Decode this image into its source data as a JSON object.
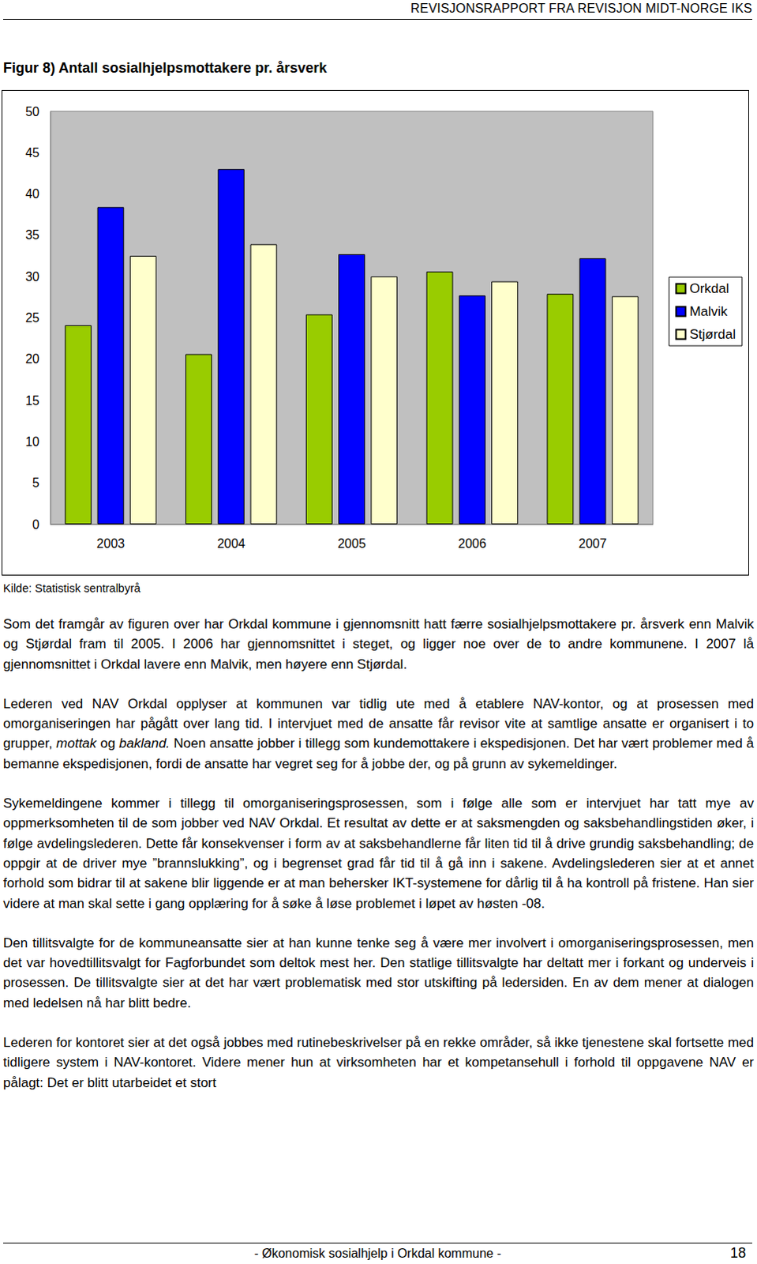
{
  "header": "REVISJONSRAPPORT FRA REVISJON MIDT-NORGE IKS",
  "chart_data": {
    "type": "bar",
    "title": "Figur 8) Antall sosialhjelpsmottakere pr. årsverk",
    "categories": [
      "2003",
      "2004",
      "2005",
      "2006",
      "2007"
    ],
    "series": [
      {
        "name": "Orkdal",
        "color": "#99cc00",
        "values": [
          24.1,
          20.6,
          25.4,
          30.6,
          27.9
        ]
      },
      {
        "name": "Malvik",
        "color": "#0000ff",
        "values": [
          38.4,
          43.0,
          32.7,
          27.7,
          32.2
        ]
      },
      {
        "name": "Stjørdal",
        "color": "#ffffcc",
        "values": [
          32.5,
          33.9,
          30.0,
          29.4,
          27.6
        ]
      }
    ],
    "ylim": [
      0,
      50
    ],
    "yticks": [
      0,
      5,
      10,
      15,
      20,
      25,
      30,
      35,
      40,
      45,
      50
    ],
    "grid": false,
    "legend": "right",
    "data_labels": false
  },
  "source": "Kilde: Statistisk sentralbyrå",
  "paragraphs": [
    "Som det framgår av figuren over har Orkdal kommune i gjennomsnitt hatt færre sosialhjelpsmottakere pr. årsverk enn Malvik og Stjørdal fram til 2005. I 2006 har gjennomsnittet i steget, og ligger noe over de to andre kommunene. I 2007 lå gjennomsnittet i Orkdal lavere enn Malvik, men høyere enn Stjørdal.",
    [
      {
        "text": "Lederen ved NAV Orkdal opplyser at kommunen var tidlig ute med å etablere NAV-kontor, og at prosessen med omorganiseringen har pågått over lang tid. I intervjuet med de ansatte får revisor vite at samtlige ansatte er organisert i to grupper, "
      },
      {
        "text": "mottak",
        "italic": true
      },
      {
        "text": " og "
      },
      {
        "text": "bakland.",
        "italic": true
      },
      {
        "text": " Noen ansatte jobber i tillegg som kundemottakere i ekspedisjonen. Det har vært problemer med å bemanne ekspedisjonen, fordi de ansatte har vegret seg for å jobbe der, og på grunn av sykemeldinger."
      }
    ],
    "Sykemeldingene kommer i tillegg til omorganiseringsprosessen, som i følge alle som er intervjuet har tatt mye av oppmerksomheten til de som jobber ved NAV Orkdal. Et resultat av dette er at saksmengden og saksbehandlingstiden øker, i følge avdelingslederen. Dette får konsekvenser i form av at saksbehandlerne får liten tid til å drive grundig saksbehandling; de oppgir at de driver mye ”brannslukking”, og i begrenset grad får tid til å gå inn i sakene. Avdelingslederen sier at et annet forhold som bidrar til at sakene blir liggende er at man behersker IKT-systemene for dårlig til å ha kontroll på fristene. Han sier videre at man skal sette i gang opplæring for å søke å løse problemet i løpet av høsten -08.",
    "Den tillitsvalgte for de kommuneansatte sier at han kunne tenke seg å være mer involvert i omorganiseringsprosessen, men det var hovedtillitsvalgt for Fagforbundet som deltok mest her. Den statlige tillitsvalgte har deltatt mer i forkant og underveis i prosessen. De tillitsvalgte sier at det har vært problematisk med stor utskifting på ledersiden. En av dem mener at dialogen med ledelsen nå har blitt bedre.",
    "Lederen for kontoret sier at det også jobbes med rutinebeskrivelser på en rekke områder, så ikke tjenestene skal fortsette med tidligere system i NAV-kontoret. Videre mener hun at virksomheten har et kompetansehull i forhold til oppgavene NAV er pålagt: Det er blitt utarbeidet et stort"
  ],
  "footer": {
    "title": "- Økonomisk sosialhjelp i Orkdal kommune -",
    "page": "18"
  }
}
